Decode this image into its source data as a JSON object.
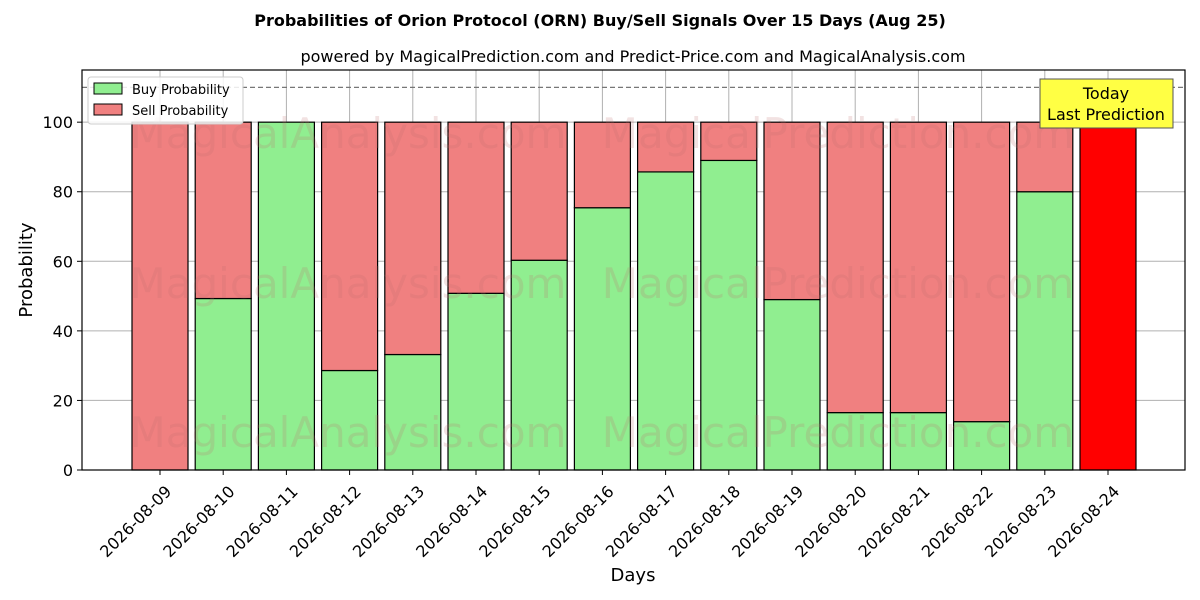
{
  "chart_data": {
    "type": "bar",
    "stacked": true,
    "title": "Probabilities of Orion Protocol (ORN) Buy/Sell Signals Over 15 Days (Aug 25)",
    "subtitle": "powered by MagicalPrediction.com and Predict-Price.com and MagicalAnalysis.com",
    "xlabel": "Days",
    "ylabel": "Probability",
    "ylim": [
      0,
      115
    ],
    "yticks": [
      0,
      20,
      40,
      60,
      80,
      100
    ],
    "grid": true,
    "legend_position": "top-left",
    "reference_line": 110,
    "categories": [
      "2026-08-09",
      "2026-08-10",
      "2026-08-11",
      "2026-08-12",
      "2026-08-13",
      "2026-08-14",
      "2026-08-15",
      "2026-08-16",
      "2026-08-17",
      "2026-08-18",
      "2026-08-19",
      "2026-08-20",
      "2026-08-21",
      "2026-08-22",
      "2026-08-23",
      "2026-08-24"
    ],
    "series": [
      {
        "name": "Buy Probability",
        "color": "#90ee90",
        "values": [
          0,
          49.3,
          100,
          28.6,
          33.2,
          50.8,
          60.3,
          75.4,
          85.7,
          89.0,
          49.0,
          16.5,
          16.5,
          13.9,
          80.0,
          0
        ]
      },
      {
        "name": "Sell Probability",
        "color": "#f08080",
        "values": [
          100,
          50.7,
          0,
          71.4,
          66.8,
          49.2,
          39.7,
          24.6,
          14.3,
          11.0,
          51.0,
          83.5,
          83.5,
          86.1,
          20.0,
          100
        ]
      }
    ],
    "highlight": {
      "index": 15,
      "color": "#ff0000"
    },
    "annotation": {
      "lines": [
        "Today",
        "Last Prediction"
      ],
      "background": "#ffff44"
    },
    "watermarks": [
      "MagicalAnalysis.com",
      "MagicalPrediction.com"
    ]
  }
}
